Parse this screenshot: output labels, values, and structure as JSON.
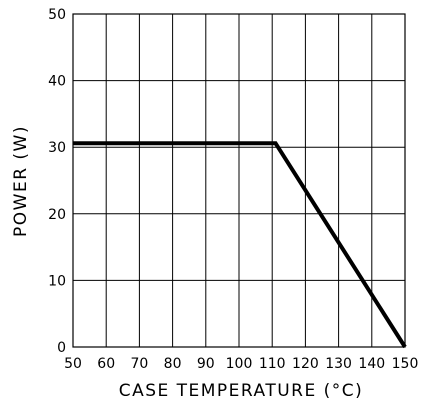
{
  "chart_data": {
    "type": "line",
    "title": "",
    "xlabel": "CASE TEMPERATURE (°C)",
    "ylabel": "POWER (W)",
    "xlim": [
      50,
      150
    ],
    "ylim": [
      0,
      50
    ],
    "grid": true,
    "x_ticks": [
      50,
      60,
      70,
      80,
      90,
      100,
      110,
      120,
      130,
      140,
      150
    ],
    "y_ticks": [
      0,
      10,
      20,
      30,
      40,
      50
    ],
    "series": [
      {
        "x": [
          50,
          111,
          150
        ],
        "y": [
          30.6,
          30.6,
          0
        ]
      }
    ],
    "colors": {
      "line": "#000000",
      "grid": "#000000"
    }
  }
}
